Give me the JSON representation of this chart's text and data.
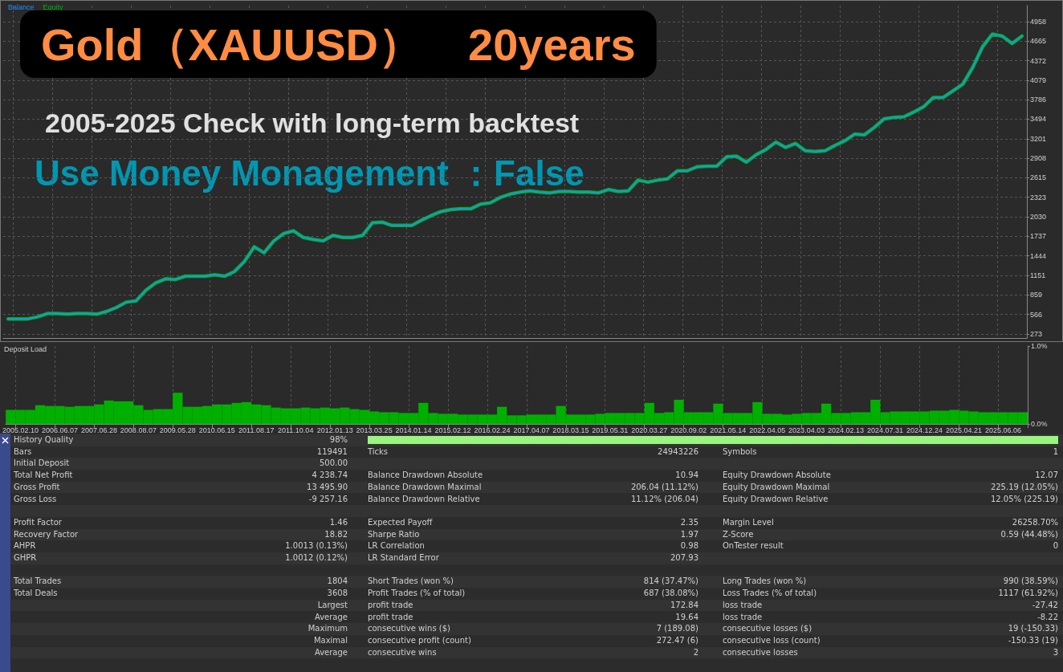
{
  "chart_data": [
    {
      "type": "line",
      "title": "Gold（XAUUSD）　20years",
      "subtitle": "2005-2025 Check with long-term backtest",
      "annotations": [
        "Use Money Monagement ：False"
      ],
      "categories": [
        null,
        "2005.02.10",
        null,
        null,
        null,
        "2006.06.07",
        null,
        null,
        null,
        "2007.06.28",
        null,
        null,
        null,
        "2008.08.07",
        null,
        null,
        null,
        "2009.05.28",
        null,
        null,
        null,
        "2010.06.15",
        null,
        null,
        null,
        "2011.08.17",
        null,
        null,
        null,
        "2011.10.04",
        null,
        null,
        null,
        "2012.01.13",
        null,
        null,
        null,
        "2013.03.25",
        null,
        null,
        null,
        "2014.01.14",
        null,
        null,
        null,
        "2015.02.12",
        null,
        null,
        null,
        "2016.02.24",
        null,
        null,
        null,
        "2017.04.07",
        null,
        null,
        null,
        "2018.03.15",
        null,
        null,
        null,
        "2019.05.31",
        null,
        null,
        null,
        "2020.03.27",
        null,
        null,
        null,
        "2020.09.02",
        null,
        null,
        null,
        "2021.05.14",
        null,
        null,
        null,
        "2022.04.05",
        null,
        null,
        null,
        "2023.04.03",
        null,
        null,
        null,
        "2024.02.13",
        null,
        null,
        null,
        "2024.07.31",
        null,
        null,
        null,
        "2024.12.24",
        null,
        null,
        null,
        "2025.04.21",
        null,
        null,
        null,
        "2025.06.06",
        null,
        null
      ],
      "series": [
        {
          "name": "Equity",
          "color": "#00b400",
          "values": [
            500,
            500,
            500,
            530,
            580,
            580,
            570,
            580,
            580,
            570,
            610,
            670,
            750,
            770,
            930,
            1040,
            1100,
            1090,
            1140,
            1140,
            1140,
            1160,
            1140,
            1210,
            1360,
            1580,
            1490,
            1670,
            1780,
            1820,
            1720,
            1690,
            1670,
            1750,
            1720,
            1720,
            1750,
            1940,
            1950,
            1900,
            1900,
            1900,
            1980,
            2050,
            2110,
            2140,
            2150,
            2150,
            2220,
            2240,
            2320,
            2370,
            2400,
            2420,
            2400,
            2390,
            2410,
            2410,
            2400,
            2400,
            2390,
            2440,
            2410,
            2420,
            2580,
            2550,
            2580,
            2600,
            2720,
            2720,
            2780,
            2790,
            2790,
            2930,
            2940,
            2850,
            2960,
            3040,
            3150,
            3070,
            3130,
            3020,
            3010,
            3020,
            3100,
            3170,
            3270,
            3260,
            3370,
            3500,
            3520,
            3530,
            3600,
            3680,
            3820,
            3820,
            3920,
            4020,
            4270,
            4580,
            4770,
            4740,
            4630,
            4740
          ]
        },
        {
          "name": "Balance",
          "color": "#1e90ff",
          "values": [
            500,
            500,
            500,
            530,
            580,
            580,
            570,
            580,
            580,
            570,
            610,
            670,
            750,
            770,
            930,
            1040,
            1100,
            1090,
            1140,
            1140,
            1140,
            1160,
            1140,
            1210,
            1360,
            1580,
            1490,
            1670,
            1780,
            1820,
            1720,
            1690,
            1670,
            1750,
            1720,
            1720,
            1750,
            1940,
            1950,
            1900,
            1900,
            1900,
            1980,
            2050,
            2110,
            2140,
            2150,
            2150,
            2220,
            2240,
            2320,
            2370,
            2400,
            2420,
            2400,
            2390,
            2410,
            2410,
            2400,
            2400,
            2390,
            2440,
            2410,
            2420,
            2580,
            2550,
            2580,
            2600,
            2720,
            2720,
            2780,
            2790,
            2790,
            2930,
            2940,
            2850,
            2960,
            3040,
            3150,
            3070,
            3130,
            3020,
            3010,
            3020,
            3100,
            3170,
            3270,
            3260,
            3370,
            3500,
            3520,
            3530,
            3600,
            3680,
            3820,
            3820,
            3920,
            4020,
            4270,
            4580,
            4770,
            4740,
            4630,
            4740
          ]
        }
      ],
      "ylim": [
        213,
        5197
      ],
      "yticks": [
        273,
        566,
        859,
        1151,
        1444,
        1737,
        2030,
        2323,
        2615,
        2908,
        3201,
        3494,
        3786,
        4079,
        4372,
        4665,
        4958
      ],
      "grid": true,
      "legend": "top left",
      "marker": "none",
      "tick_labels": "y"
    },
    {
      "type": "bar",
      "title": "Deposit Load",
      "categories": [
        null,
        "2005.02.10",
        null,
        null,
        null,
        "2006.06.07",
        null,
        null,
        null,
        "2007.06.28",
        null,
        null,
        null,
        "2008.08.07",
        null,
        null,
        null,
        "2009.05.28",
        null,
        null,
        null,
        "2010.06.15",
        null,
        null,
        null,
        "2011.08.17",
        null,
        null,
        null,
        "2011.10.04",
        null,
        null,
        null,
        "2012.01.13",
        null,
        null,
        null,
        "2013.03.25",
        null,
        null,
        null,
        "2014.01.14",
        null,
        null,
        null,
        "2015.02.12",
        null,
        null,
        null,
        "2016.02.24",
        null,
        null,
        null,
        "2017.04.07",
        null,
        null,
        null,
        "2018.03.15",
        null,
        null,
        null,
        "2019.05.31",
        null,
        null,
        null,
        "2020.03.27",
        null,
        null,
        null,
        "2020.09.02",
        null,
        null,
        null,
        "2021.05.14",
        null,
        null,
        null,
        "2022.04.05",
        null,
        null,
        null,
        "2023.04.03",
        null,
        null,
        null,
        "2024.02.13",
        null,
        null,
        null,
        "2024.07.31",
        null,
        null,
        null,
        "2024.12.24",
        null,
        null,
        null,
        "2025.04.21",
        null,
        null,
        null,
        "2025.06.06",
        null,
        null
      ],
      "color": "#00b000",
      "values": [
        0.18,
        0.18,
        0.18,
        0.24,
        0.23,
        0.23,
        0.22,
        0.23,
        0.23,
        0.25,
        0.3,
        0.29,
        0.29,
        0.24,
        0.18,
        0.19,
        0.19,
        0.4,
        0.22,
        0.22,
        0.23,
        0.25,
        0.25,
        0.27,
        0.28,
        0.25,
        0.24,
        0.21,
        0.2,
        0.2,
        0.21,
        0.2,
        0.21,
        0.2,
        0.21,
        0.19,
        0.18,
        0.16,
        0.15,
        0.15,
        0.14,
        0.14,
        0.27,
        0.14,
        0.13,
        0.13,
        0.12,
        0.12,
        0.12,
        0.12,
        0.22,
        0.11,
        0.11,
        0.12,
        0.12,
        0.12,
        0.23,
        0.12,
        0.12,
        0.12,
        0.13,
        0.14,
        0.14,
        0.14,
        0.14,
        0.27,
        0.14,
        0.15,
        0.31,
        0.15,
        0.15,
        0.15,
        0.26,
        0.14,
        0.14,
        0.14,
        0.28,
        0.13,
        0.13,
        0.12,
        0.13,
        0.14,
        0.14,
        0.26,
        0.14,
        0.14,
        0.15,
        0.15,
        0.31,
        0.15,
        0.16,
        0.16,
        0.16,
        0.16,
        0.17,
        0.17,
        0.18,
        0.17,
        0.16,
        0.15,
        0.15,
        0.15,
        0.15,
        0.15
      ],
      "ylim": [
        0,
        1
      ],
      "yticks": [
        {
          "value": 0,
          "label": "0.0%"
        },
        {
          "value": 1,
          "label": "1.0%"
        }
      ],
      "grid": "x"
    },
    {
      "type": "other",
      "annotations": [
        "History Quality",
        "98%",
        null,
        null,
        null,
        null,
        "Bars",
        "119491",
        "Ticks",
        "24943226",
        "Symbols",
        "1",
        "Initial Deposit",
        "500.00",
        null,
        null,
        null,
        null,
        "Total Net Profit",
        "4 238.74",
        "Balance Drawdown Absolute",
        "10.94",
        "Equity Drawdown Absolute",
        "12.07",
        "Gross Profit",
        "13 495.90",
        "Balance Drawdown Maximal",
        "206.04 (11.12%)",
        "Equity Drawdown Maximal",
        "225.19 (12.05%)",
        "Gross Loss",
        "-9 257.16",
        "Balance Drawdown Relative",
        "11.12% (206.04)",
        "Equity Drawdown Relative",
        "12.05% (225.19)",
        null,
        null,
        null,
        null,
        null,
        null,
        "Profit Factor",
        "1.46",
        "Expected Payoff",
        "2.35",
        "Margin Level",
        "26258.70%",
        "Recovery Factor",
        "18.82",
        "Sharpe Ratio",
        "1.97",
        "Z-Score",
        "0.59 (44.48%)",
        "AHPR",
        "1.0013 (0.13%)",
        "LR Correlation",
        "0.98",
        "OnTester result",
        "0",
        "GHPR",
        "1.0012 (0.12%)",
        "LR Standard Error",
        "207.93",
        null,
        null,
        null,
        null,
        null,
        null,
        null,
        null,
        "Total Trades",
        "1804",
        "Short Trades (won %)",
        "814 (37.47%)",
        "Long Trades (won %)",
        "990 (38.59%)",
        "Total Deals",
        "3608",
        "Profit Trades (% of total)",
        "687 (38.08%)",
        "Loss Trades (% of total)",
        "1117 (61.92%)",
        null,
        "Largest",
        "profit trade",
        "172.84",
        "loss trade",
        "-27.42",
        null,
        "Average",
        "profit trade",
        "19.64",
        "loss trade",
        "-8.22",
        null,
        "Maximum",
        "consecutive wins ($)",
        "7 (189.08)",
        "consecutive losses ($)",
        "19 (-150.33)",
        null,
        "Maximal",
        "consecutive profit (count)",
        "272.47 (6)",
        "consecutive loss (count)",
        "-150.33 (19)",
        null,
        "Average",
        "consecutive wins",
        "2",
        "consecutive losses",
        "3"
      ]
    }
  ]
}
